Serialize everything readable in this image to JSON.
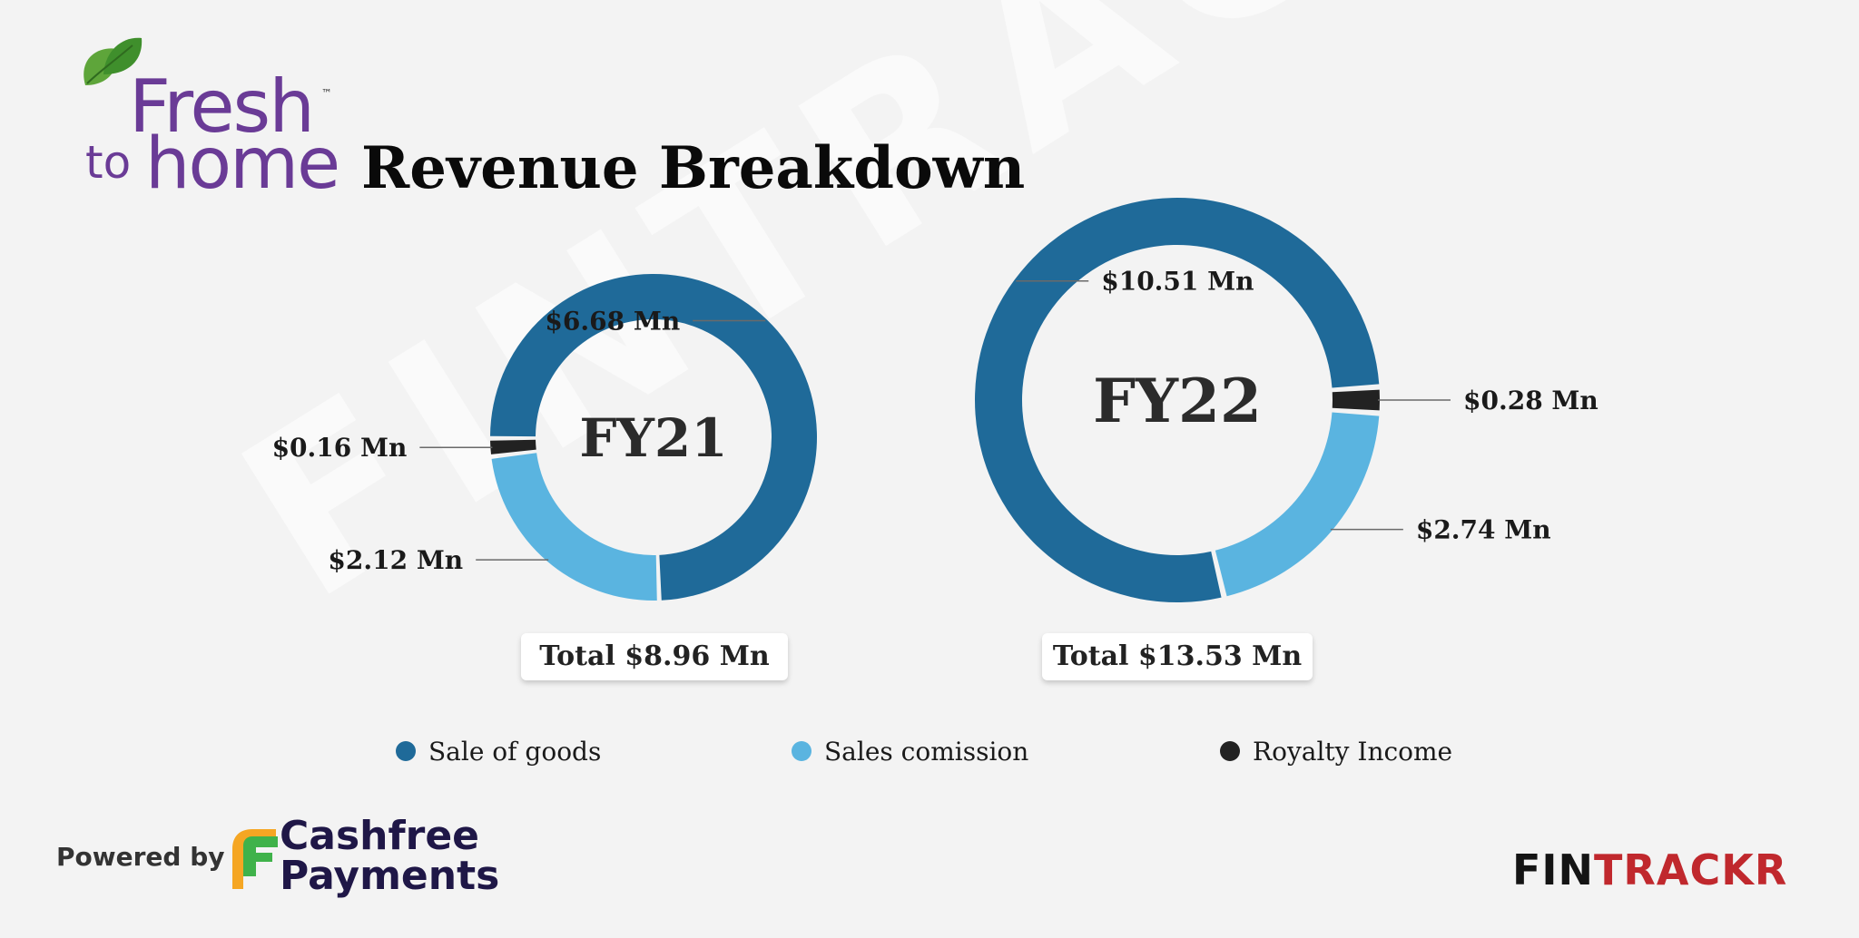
{
  "title": "Revenue Breakdown",
  "brand": {
    "fresh": "Fresh",
    "to": "to",
    "home": "home",
    "tm": "™"
  },
  "watermark": "FINTRACKR",
  "footer": {
    "powered_by": "Powered by",
    "cashfree_line1": "Cashfree",
    "cashfree_line2": "Payments",
    "fintrackr_a": "FIN",
    "fintrackr_b": "TRACKR"
  },
  "colors": {
    "sale_of_goods": "#1f6a99",
    "sales_commission": "#5ab4e0",
    "royalty_income": "#222222",
    "gap": "#ffffff"
  },
  "legend": [
    {
      "label": "Sale of goods",
      "color": "#1f6a99"
    },
    {
      "label": "Sales comission",
      "color": "#5ab4e0"
    },
    {
      "label": "Royalty Income",
      "color": "#222222"
    }
  ],
  "chart_data": [
    {
      "type": "pie",
      "title": "FY21",
      "total_label": "Total $8.96 Mn",
      "slices": [
        {
          "series": "Sale of goods",
          "value": 6.68,
          "label": "$6.68 Mn"
        },
        {
          "series": "Sales comission",
          "value": 2.12,
          "label": "$2.12 Mn"
        },
        {
          "series": "Royalty Income",
          "value": 0.16,
          "label": "$0.16 Mn"
        }
      ]
    },
    {
      "type": "pie",
      "title": "FY22",
      "total_label": "Total $13.53 Mn",
      "slices": [
        {
          "series": "Sale of goods",
          "value": 10.51,
          "label": "$10.51 Mn"
        },
        {
          "series": "Sales comission",
          "value": 2.74,
          "label": "$2.74 Mn"
        },
        {
          "series": "Royalty Income",
          "value": 0.28,
          "label": "$0.28 Mn"
        }
      ]
    }
  ]
}
